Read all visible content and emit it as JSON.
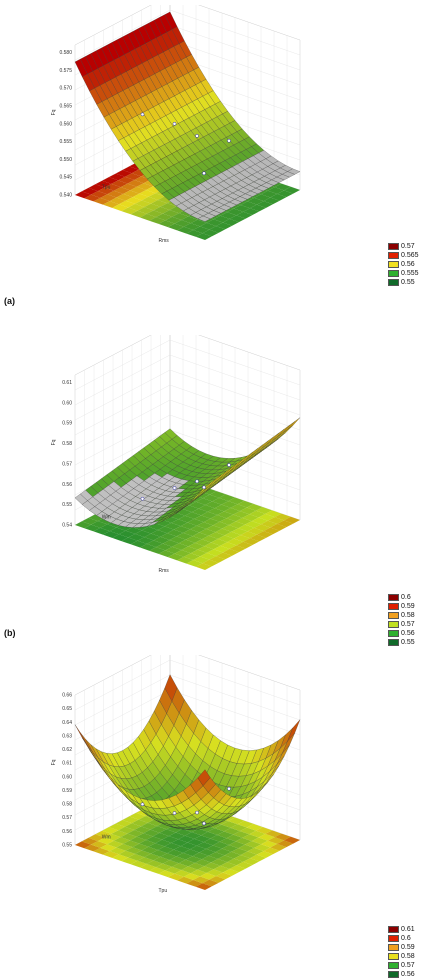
{
  "chart_data": [
    {
      "type": "surface",
      "panel_label": "(a)",
      "zlabel": "Fq",
      "xlabel": "Rms",
      "ylabel": "Tpu",
      "z_ticks": [
        "0.580",
        "0.575",
        "0.570",
        "0.565",
        "0.560",
        "0.555",
        "0.550",
        "0.545",
        "0.540"
      ],
      "legend": {
        "entries": [
          {
            "label": "0.57",
            "color": "#8b0000"
          },
          {
            "label": "0.565",
            "color": "#e02000"
          },
          {
            "label": "0.56",
            "color": "#f0e020"
          },
          {
            "label": "0.555",
            "color": "#30b030"
          },
          {
            "label": "0.55",
            "color": "#106a2a"
          }
        ]
      },
      "colors": {
        "high": "#b80000",
        "mid": "#e8e020",
        "low": "#1f8a30",
        "grey": "#b8b8b8"
      }
    },
    {
      "type": "surface",
      "panel_label": "(b)",
      "zlabel": "Fq",
      "xlabel": "Rms",
      "ylabel": "Wm",
      "z_ticks": [
        "0.61",
        "0.60",
        "0.59",
        "0.58",
        "0.57",
        "0.56",
        "0.55",
        "0.54"
      ],
      "legend": {
        "entries": [
          {
            "label": "0.6",
            "color": "#8b0000"
          },
          {
            "label": "0.59",
            "color": "#e02000"
          },
          {
            "label": "0.58",
            "color": "#f0a020"
          },
          {
            "label": "0.57",
            "color": "#c0e020"
          },
          {
            "label": "0.56",
            "color": "#30b030"
          },
          {
            "label": "0.55",
            "color": "#106a2a"
          }
        ]
      },
      "colors": {
        "high": "#d06000",
        "mid": "#c8e020",
        "low": "#1f8a30",
        "grey": "#c0c0c0"
      }
    },
    {
      "type": "surface",
      "panel_label": "",
      "zlabel": "Fq",
      "xlabel": "Tpu",
      "ylabel": "Wm",
      "z_ticks": [
        "0.66",
        "0.65",
        "0.64",
        "0.63",
        "0.62",
        "0.61",
        "0.60",
        "0.59",
        "0.58",
        "0.57",
        "0.56",
        "0.55"
      ],
      "legend": {
        "entries": [
          {
            "label": "0.61",
            "color": "#8b0000"
          },
          {
            "label": "0.6",
            "color": "#e02000"
          },
          {
            "label": "0.59",
            "color": "#f0a020"
          },
          {
            "label": "0.58",
            "color": "#e8e020"
          },
          {
            "label": "0.57",
            "color": "#30b030"
          },
          {
            "label": "0.56",
            "color": "#106a2a"
          }
        ]
      },
      "colors": {
        "high": "#c02000",
        "mid": "#d8e020",
        "low": "#1f8a30",
        "grey": "#1f8a30"
      }
    }
  ]
}
